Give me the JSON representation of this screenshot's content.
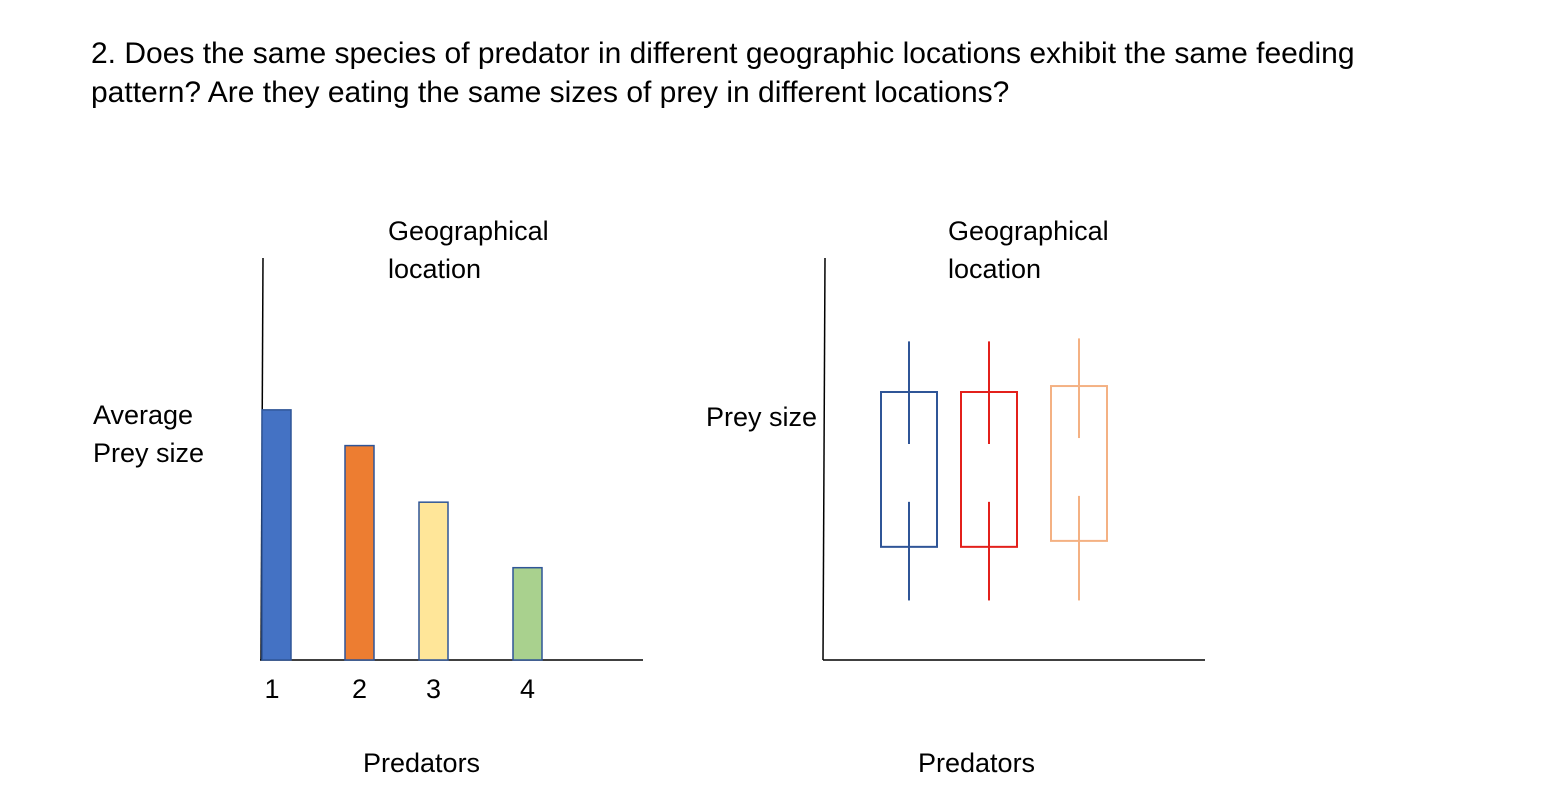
{
  "question": "2. Does the same species of predator in different geographic locations exhibit the same feeding pattern? Are they eating the same sizes of prey in different locations?",
  "chart_data": [
    {
      "type": "bar",
      "title": "Geographical\nlocation",
      "xlabel": "Predators",
      "ylabel": "Average\nPrey size",
      "categories": [
        "1",
        "2",
        "3",
        "4"
      ],
      "values": [
        0.84,
        0.72,
        0.53,
        0.31
      ],
      "ylim": [
        0,
        1.35
      ],
      "colors": [
        "#4472C4",
        "#ED7D31",
        "#FFE699",
        "#A9D18E"
      ],
      "grid": false,
      "legend": "none"
    },
    {
      "type": "box",
      "title": "Geographical\nlocation",
      "xlabel": "Predators",
      "ylabel": "Prey size",
      "ylim": [
        0,
        1.35
      ],
      "series": [
        {
          "color": "#2F5597",
          "whisker_low": 0.2,
          "q1": 0.38,
          "q3": 0.9,
          "whisker_high": 1.07
        },
        {
          "color": "#E3201B",
          "whisker_low": 0.2,
          "q1": 0.38,
          "q3": 0.9,
          "whisker_high": 1.07
        },
        {
          "color": "#F4B183",
          "whisker_low": 0.2,
          "q1": 0.4,
          "q3": 0.92,
          "whisker_high": 1.08
        }
      ],
      "grid": false,
      "legend": "none"
    }
  ]
}
